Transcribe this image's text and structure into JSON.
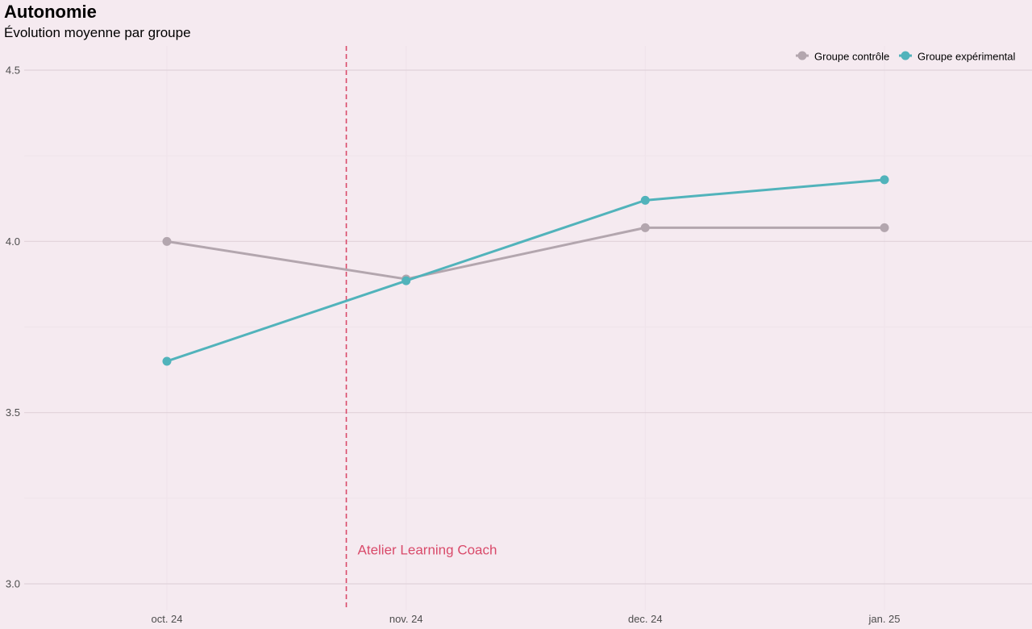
{
  "chart_data": {
    "type": "line",
    "title": "Autonomie",
    "subtitle": "Évolution moyenne par groupe",
    "xlabel": "",
    "ylabel": "",
    "categories": [
      "oct. 24",
      "nov. 24",
      "dec. 24",
      "jan. 25"
    ],
    "ylim": [
      2.95,
      4.57
    ],
    "yticks": [
      3.0,
      3.5,
      4.0,
      4.5
    ],
    "ytick_labels": [
      "3.0",
      "3.5",
      "4.0",
      "4.5"
    ],
    "grid": true,
    "legend_position": "top-right",
    "series": [
      {
        "name": "Groupe contrôle",
        "color": "#b3a6ae",
        "values": [
          4.0,
          3.89,
          4.04,
          4.04
        ]
      },
      {
        "name": "Groupe expérimental",
        "color": "#51b3bb",
        "values": [
          3.65,
          3.885,
          4.12,
          4.18
        ]
      }
    ],
    "annotation": {
      "label": "Atelier Learning Coach",
      "x_between": [
        "oct. 24",
        "nov. 24"
      ],
      "x_fraction": 0.75,
      "text_y": 3.1,
      "color": "#d94a6a",
      "line_style": "dashed"
    }
  }
}
